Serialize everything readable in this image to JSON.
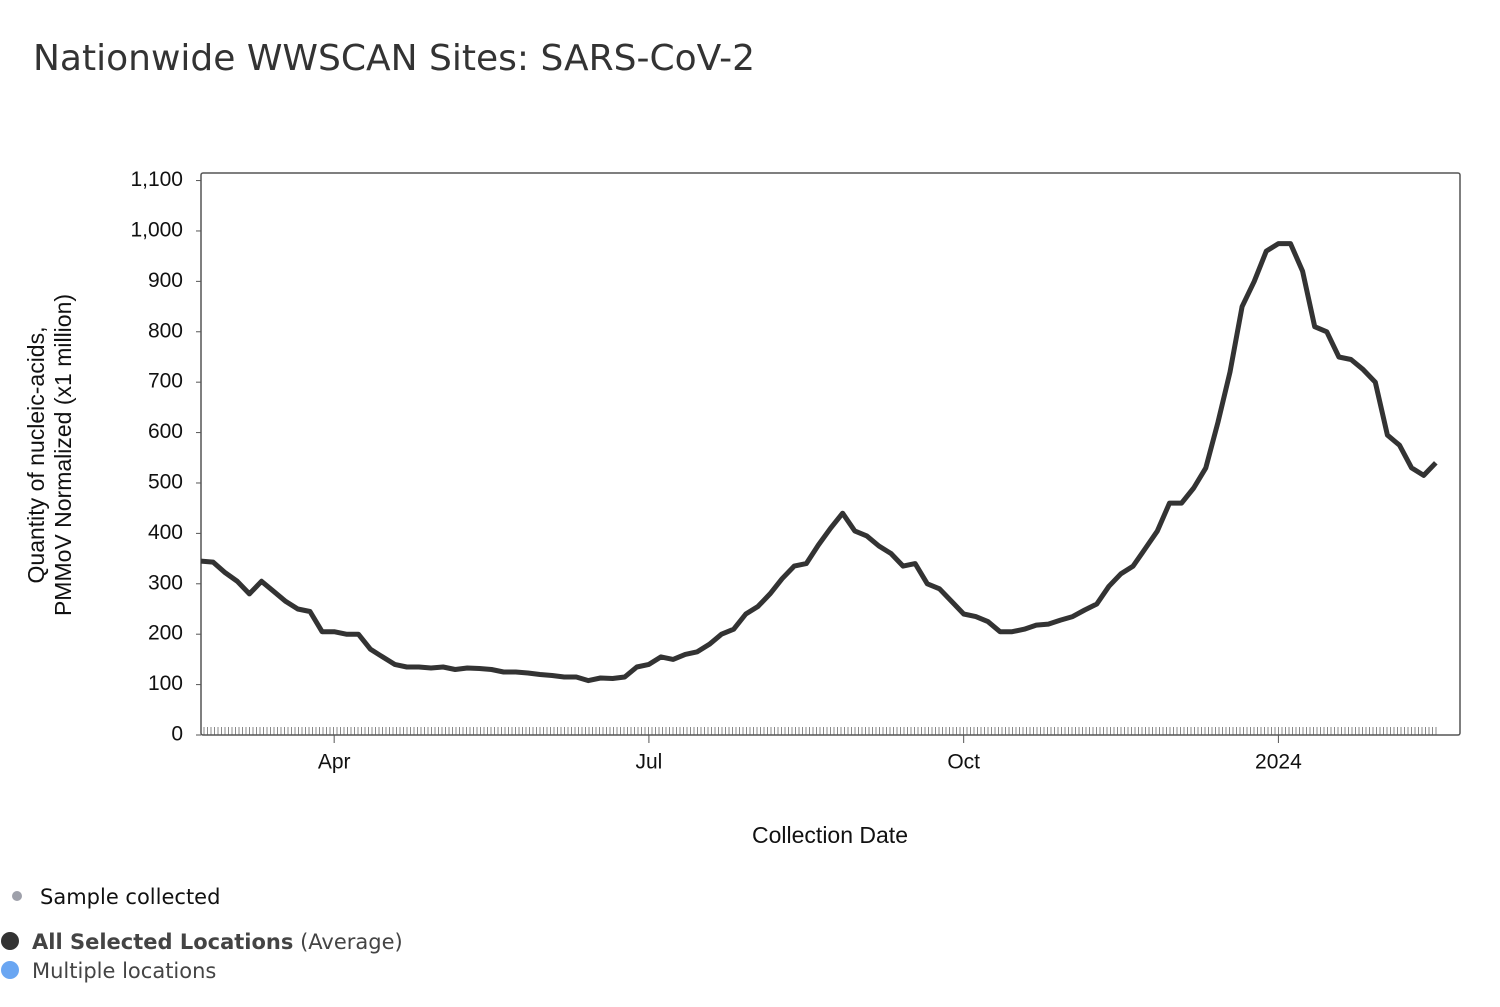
{
  "chart_data": {
    "type": "line",
    "title": "Nationwide WWSCAN Sites: SARS-CoV-2",
    "x_label": "Collection Date",
    "y_label": [
      "Quantity of nucleic-acids,",
      "PMMoV Normalized (x1 million)"
    ],
    "categories": [
      null,
      null,
      null,
      null,
      null,
      null,
      null,
      null,
      null,
      null,
      null,
      "Apr",
      null,
      null,
      null,
      null,
      null,
      null,
      null,
      null,
      null,
      null,
      null,
      null,
      null,
      null,
      null,
      null,
      null,
      null,
      null,
      null,
      null,
      null,
      null,
      null,
      null,
      "Jul",
      null,
      null,
      null,
      null,
      null,
      null,
      null,
      null,
      null,
      null,
      null,
      null,
      null,
      null,
      null,
      null,
      null,
      null,
      null,
      null,
      null,
      null,
      null,
      null,
      null,
      "Oct",
      null,
      null,
      null,
      null,
      null,
      null,
      null,
      null,
      null,
      null,
      null,
      null,
      null,
      null,
      null,
      null,
      null,
      null,
      null,
      null,
      null,
      null,
      null,
      null,
      null,
      "2024",
      null,
      null,
      null,
      null,
      null,
      null,
      null,
      null,
      null,
      null,
      null,
      null,
      null,
      null,
      null
    ],
    "series": [
      {
        "name": "All Selected Locations",
        "qualifier": "(Average)",
        "color": "#333333",
        "values": [
          345,
          343,
          322,
          305,
          280,
          305,
          285,
          265,
          250,
          245,
          205,
          205,
          200,
          200,
          170,
          155,
          140,
          135,
          135,
          133,
          135,
          130,
          133,
          132,
          130,
          125,
          125,
          123,
          120,
          118,
          115,
          115,
          108,
          113,
          112,
          115,
          135,
          140,
          155,
          150,
          160,
          165,
          180,
          200,
          210,
          240,
          255,
          280,
          310,
          335,
          340,
          377,
          410,
          440,
          405,
          395,
          375,
          360,
          335,
          340,
          300,
          290,
          265,
          240,
          235,
          225,
          205,
          205,
          210,
          218,
          220,
          228,
          235,
          248,
          260,
          295,
          320,
          335,
          370,
          405,
          460,
          460,
          490,
          530,
          620,
          720,
          850,
          900,
          960,
          975,
          975,
          920,
          810,
          800,
          750,
          745,
          725,
          700,
          595,
          575,
          530,
          515,
          540,
          null,
          null
        ]
      }
    ],
    "legend_items": [
      {
        "label": "Sample collected",
        "color": "#9ea0aa"
      },
      {
        "label": "Multiple locations",
        "color": "#6aa6f2"
      }
    ],
    "ylim": [
      0,
      1115
    ],
    "yticks": [
      0,
      100,
      200,
      300,
      400,
      500,
      600,
      700,
      800,
      900,
      {
        "value": 1000,
        "label": "1,000"
      },
      {
        "value": 1100,
        "label": "1,100"
      }
    ]
  }
}
